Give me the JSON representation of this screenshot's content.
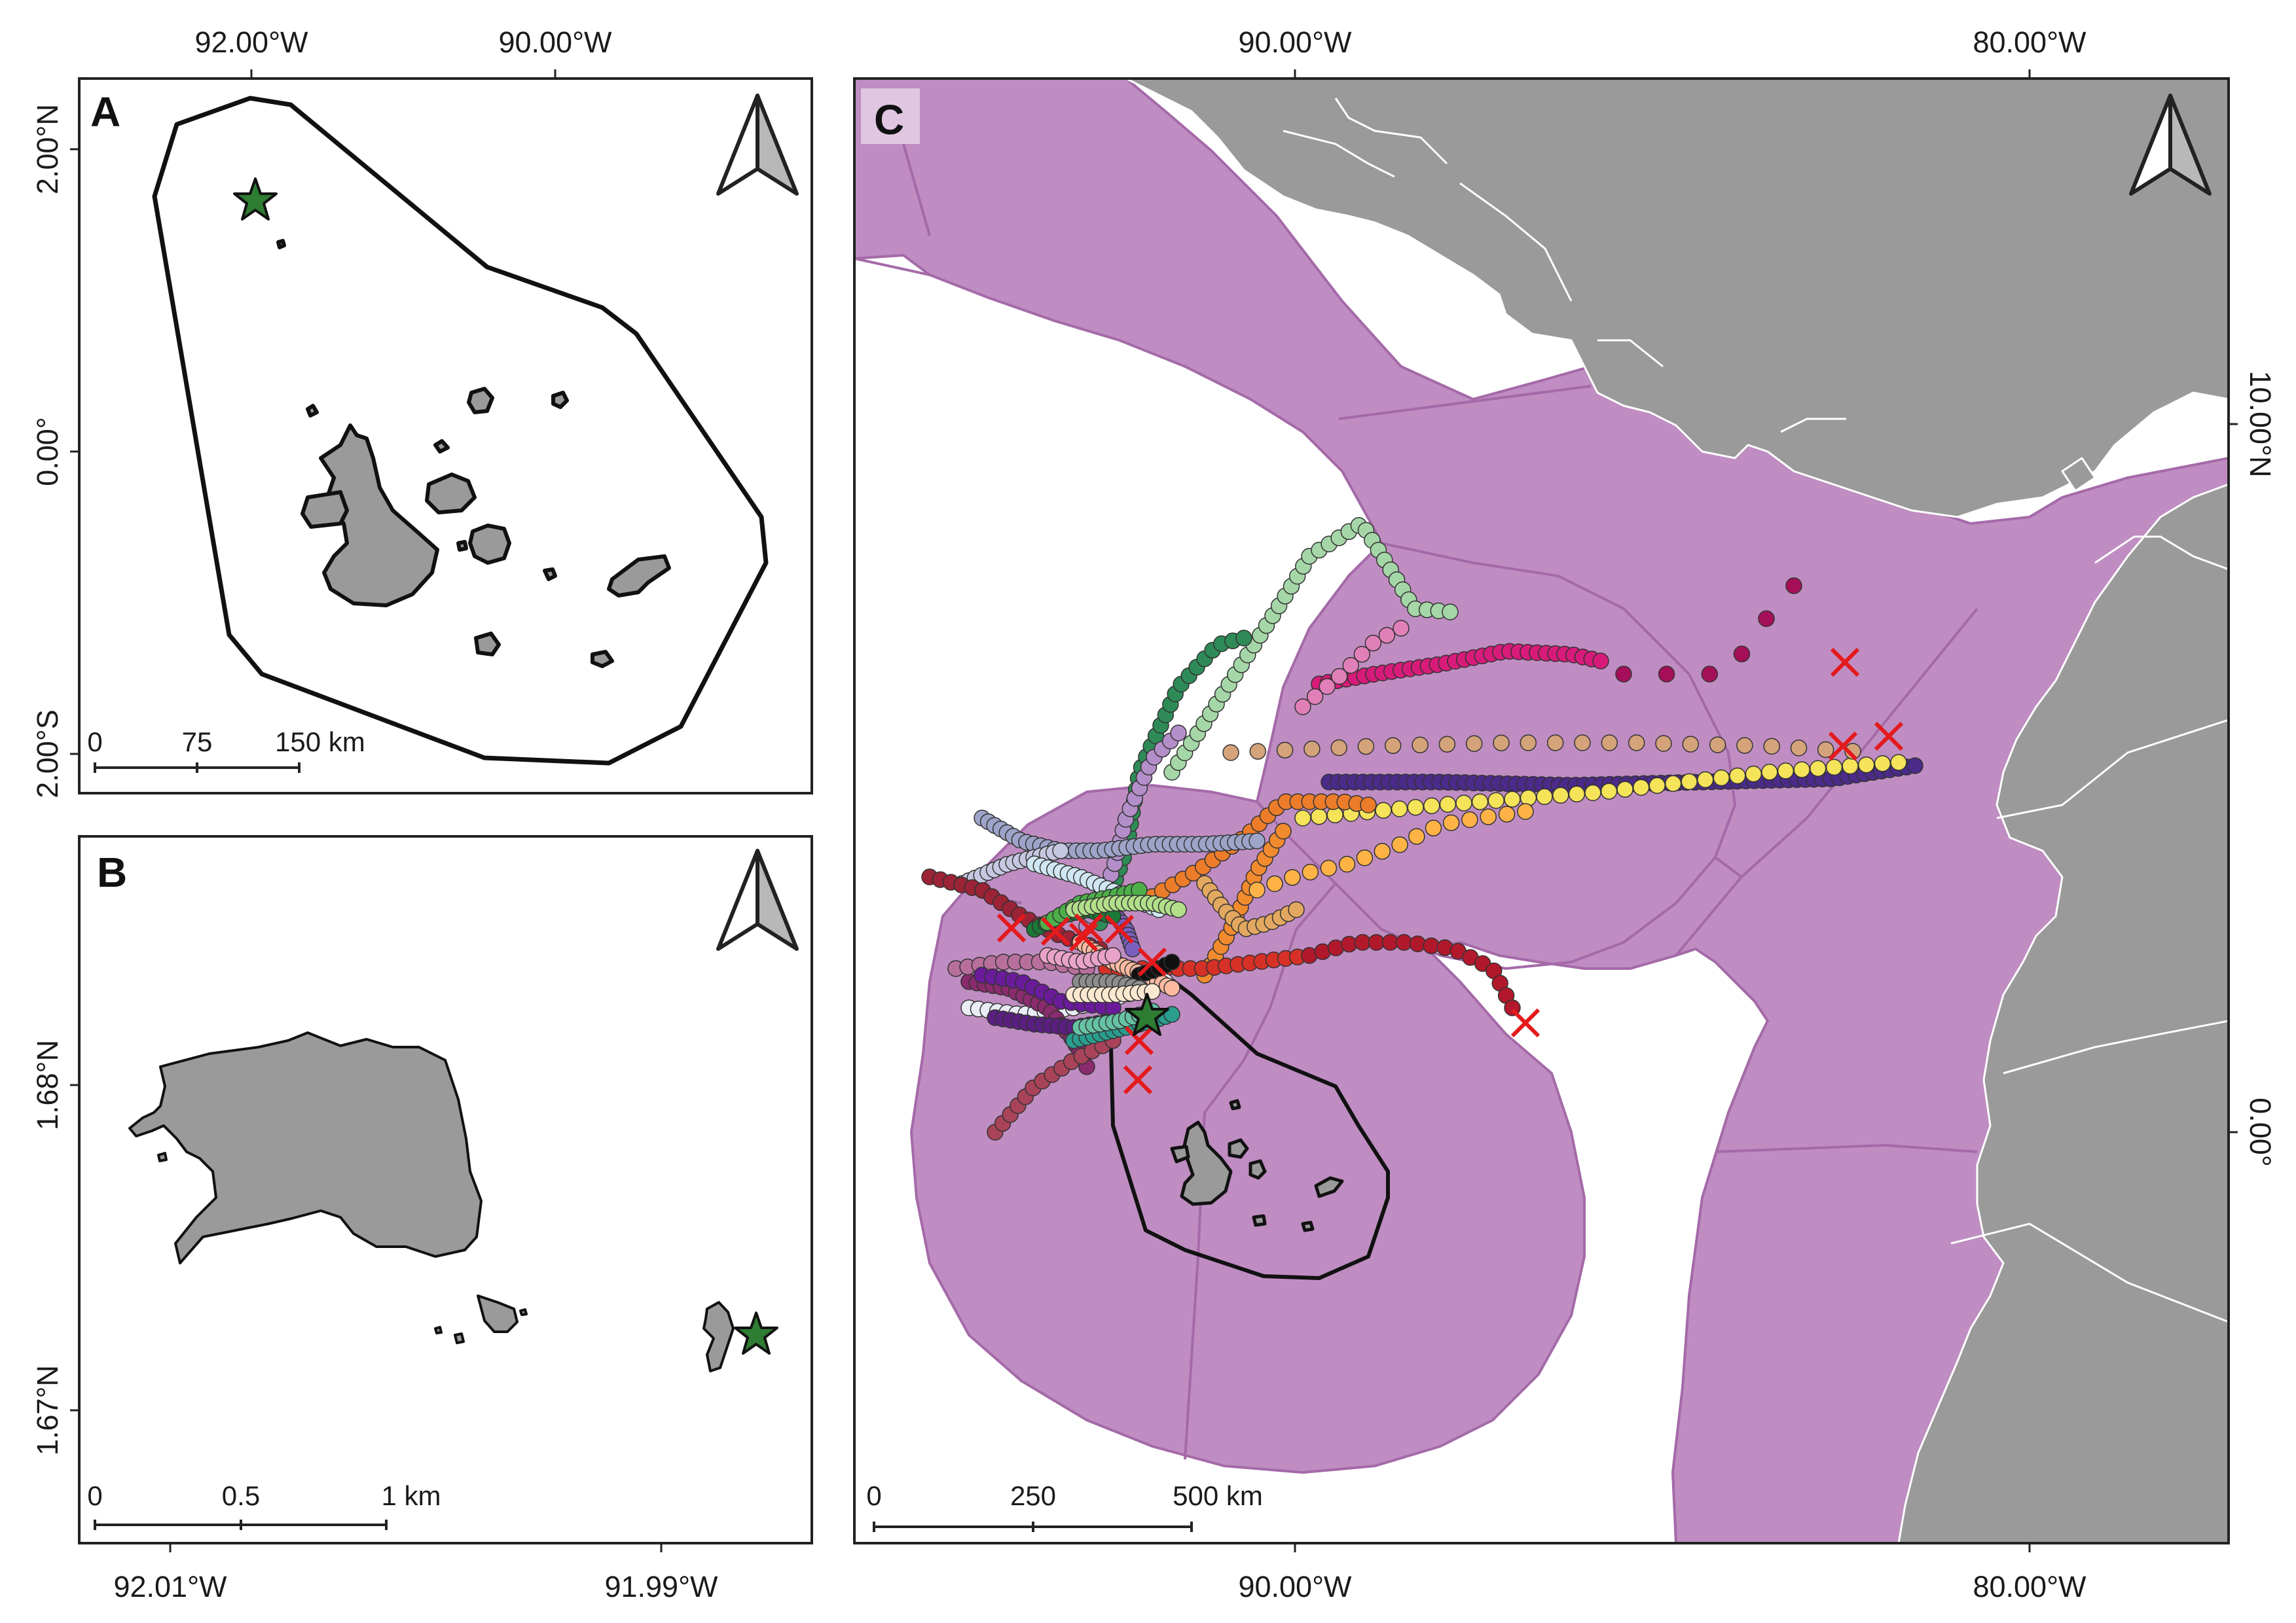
{
  "colors": {
    "land": "#9a9a9a",
    "eez": "#bf8dc2",
    "eez_border": "#a46aa8",
    "star": "#2e7d32",
    "end_marker": "#e41a1c",
    "frame": "#222222"
  },
  "panel_a": {
    "label": "A",
    "top_ticks": [
      "92.00°W",
      "90.00°W"
    ],
    "left_ticks": [
      "2.00°N",
      "0.00°",
      "2.00°S"
    ],
    "scalebar": {
      "labels": [
        "0",
        "75",
        "150 km"
      ]
    },
    "icons": [
      "north-arrow-icon",
      "star-icon"
    ]
  },
  "panel_b": {
    "label": "B",
    "bottom_ticks": [
      "92.01°W",
      "91.99°W"
    ],
    "left_ticks": [
      "1.68°N",
      "1.67°N"
    ],
    "scalebar": {
      "labels": [
        "0",
        "0.5",
        "1 km"
      ]
    },
    "icons": [
      "north-arrow-icon",
      "star-icon"
    ]
  },
  "panel_c": {
    "label": "C",
    "top_ticks": [
      "90.00°W",
      "80.00°W"
    ],
    "bottom_ticks": [
      "90.00°W",
      "80.00°W"
    ],
    "right_ticks": [
      "10.00°N",
      "0.00°"
    ],
    "scalebar": {
      "labels": [
        "0",
        "250",
        "500 km"
      ]
    },
    "icons": [
      "north-arrow-icon",
      "star-icon",
      "x-marker-icon"
    ]
  }
}
